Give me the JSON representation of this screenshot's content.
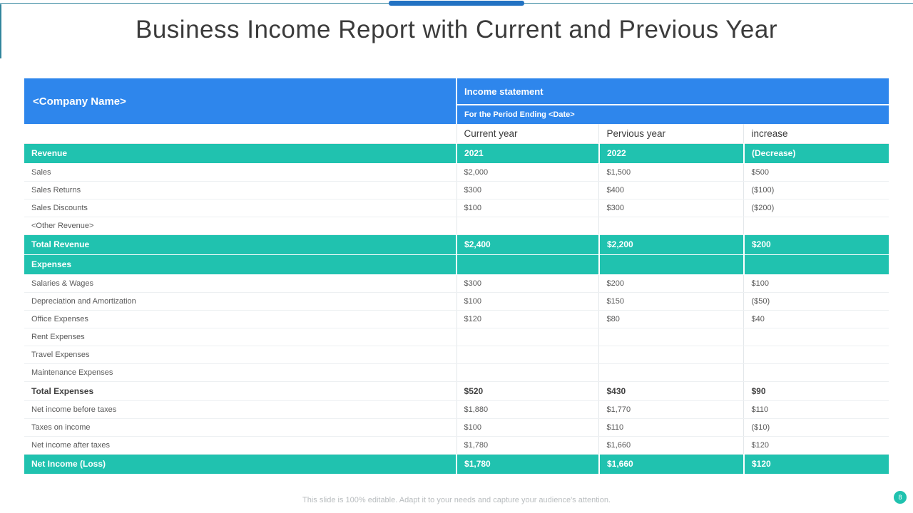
{
  "slide": {
    "title": "Business Income Report with Current and Previous Year",
    "footer_note": "This slide is 100% editable. Adapt it to your needs and capture your audience's attention.",
    "page_number": "8"
  },
  "colors": {
    "header_blue": "#2e86ec",
    "accent_teal": "#20c2af",
    "top_rule_teal": "#31859c",
    "top_bar_blue": "#2272c3",
    "body_text": "#595959",
    "title_text": "#3b3b3b",
    "footer_text": "#b9bdbf"
  },
  "table": {
    "company_name": "<Company Name>",
    "statement_title": "Income statement",
    "period_label": "For the Period Ending <Date>",
    "columns": [
      "Current year",
      "Pervious year",
      "increase"
    ],
    "rows": [
      {
        "type": "teal",
        "label": "Revenue",
        "current": "2021",
        "previous": "2022",
        "change": "(Decrease)"
      },
      {
        "type": "data",
        "label": "Sales",
        "current": "$2,000",
        "previous": "$1,500",
        "change": "$500"
      },
      {
        "type": "data",
        "label": "Sales Returns",
        "current": "$300",
        "previous": "$400",
        "change": "($100)"
      },
      {
        "type": "data",
        "label": "Sales Discounts",
        "current": "$100",
        "previous": "$300",
        "change": "($200)"
      },
      {
        "type": "data",
        "label": "<Other Revenue>",
        "current": "",
        "previous": "",
        "change": ""
      },
      {
        "type": "teal",
        "label": "Total Revenue",
        "current": "$2,400",
        "previous": "$2,200",
        "change": "$200"
      },
      {
        "type": "teal",
        "label": "Expenses",
        "current": "",
        "previous": "",
        "change": ""
      },
      {
        "type": "data",
        "label": "Salaries & Wages",
        "current": "$300",
        "previous": "$200",
        "change": "$100"
      },
      {
        "type": "data",
        "label": "Depreciation and Amortization",
        "current": "$100",
        "previous": "$150",
        "change": "($50)"
      },
      {
        "type": "data",
        "label": "Office Expenses",
        "current": "$120",
        "previous": "$80",
        "change": "$40"
      },
      {
        "type": "data",
        "label": "Rent Expenses",
        "current": "",
        "previous": "",
        "change": ""
      },
      {
        "type": "data",
        "label": "Travel Expenses",
        "current": "",
        "previous": "",
        "change": ""
      },
      {
        "type": "data",
        "label": "Maintenance Expenses",
        "current": "",
        "previous": "",
        "change": ""
      },
      {
        "type": "bold",
        "label": "Total Expenses",
        "current": "$520",
        "previous": "$430",
        "change": "$90"
      },
      {
        "type": "data",
        "label": "Net income before taxes",
        "current": "$1,880",
        "previous": "$1,770",
        "change": "$110"
      },
      {
        "type": "data",
        "label": "Taxes on income",
        "current": "$100",
        "previous": "$110",
        "change": "($10)"
      },
      {
        "type": "data",
        "label": "Net income after taxes",
        "current": "$1,780",
        "previous": "$1,660",
        "change": "$120"
      },
      {
        "type": "teal",
        "label": "Net Income (Loss)",
        "current": "$1,780",
        "previous": "$1,660",
        "change": "$120"
      }
    ]
  }
}
